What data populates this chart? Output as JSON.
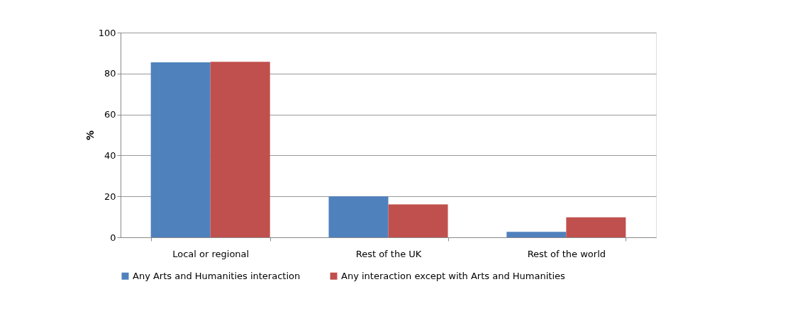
{
  "chart_data": {
    "type": "bar",
    "ylabel": "%",
    "categories": [
      "Local or regional",
      "Rest of the UK",
      "Rest of the world"
    ],
    "series": [
      {
        "name": "Any Arts and Humanities interaction",
        "color": "#4f81bd",
        "values": [
          85.5,
          20,
          2.7
        ]
      },
      {
        "name": "Any interaction except with Arts and Humanities",
        "color": "#c0504d",
        "values": [
          85.7,
          16.1,
          9.8
        ]
      }
    ],
    "ylim": [
      0,
      100
    ],
    "yticks": [
      0,
      20,
      40,
      60,
      80,
      100
    ],
    "grid": "y",
    "legend": "bottom"
  }
}
